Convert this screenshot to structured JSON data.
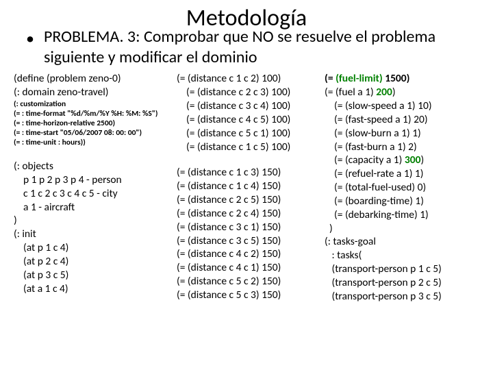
{
  "title": "Metodología",
  "bullet_char": "•",
  "subtitle": "PROBLEMA. 3: Comprobar que NO se resuelve el problema siguiente y modificar el dominio",
  "colors": {
    "text": "#000000",
    "accent": "#008000",
    "bg": "#ffffff"
  },
  "col1": {
    "block1": [
      "(define (problem zeno-0)",
      "(: domain zeno-travel)"
    ],
    "block_small": [
      "(: customization",
      "(= : time-format \"%d/%m/%Y %H: %M: %S\")",
      "(= : time-horizon-relative 2500)",
      "(= : time-start \"05/06/2007 08: 00: 00\")",
      "(= : time-unit : hours))"
    ],
    "block2": [
      "(: objects",
      "    p 1 p 2 p 3 p 4 - person",
      "    c 1 c 2 c 3 c 4 c 5 - city",
      "    a 1 - aircraft",
      ")",
      "(: init",
      "    (at p 1 c 4)",
      "    (at p 2 c 4)",
      "    (at p 3 c 5)",
      "    (at a 1 c 4)"
    ]
  },
  "col2": {
    "block1": [
      "(= (distance c 1 c 2) 100)",
      "    (= (distance c 2 c 3) 100)",
      "    (= (distance c 3 c 4) 100)",
      "    (= (distance c 4 c 5) 100)",
      "    (= (distance c 5 c 1) 100)",
      "    (= (distance c 1 c 5) 100)"
    ],
    "block2": [
      "(= (distance c 1 c 3) 150)",
      "(= (distance c 1 c 4) 150)",
      "(= (distance c 2 c 5) 150)",
      "(= (distance c 2 c 4) 150)",
      "(= (distance c 3 c 1) 150)",
      "(= (distance c 3 c 5) 150)",
      "(= (distance c 4 c 2) 150)",
      "(= (distance c 4 c 1) 150)",
      "(= (distance c 5 c 2) 150)",
      "(= (distance c 5 c 3) 150)"
    ]
  },
  "col3": {
    "lines": [
      {
        "pre": "(= ",
        "mid": "(fuel-limit)",
        "post": " 1500)",
        "bold": true,
        "green": true
      },
      {
        "pre": "(= (fuel a 1) ",
        "mid": "200",
        "post": ")",
        "bold": false,
        "green": true
      },
      {
        "pre": "    (= (slow-speed a 1) 10)",
        "mid": "",
        "post": "",
        "bold": false,
        "green": false
      },
      {
        "pre": "    (= (fast-speed a 1) 20)",
        "mid": "",
        "post": "",
        "bold": false,
        "green": false
      },
      {
        "pre": "    (= (slow-burn a 1) 1)",
        "mid": "",
        "post": "",
        "bold": false,
        "green": false
      },
      {
        "pre": "    (= (fast-burn a 1) 2)",
        "mid": "",
        "post": "",
        "bold": false,
        "green": false
      },
      {
        "pre": "    (= (capacity a 1) ",
        "mid": "300",
        "post": ")",
        "bold": false,
        "green": true
      },
      {
        "pre": "    (= (refuel-rate a 1) 1)",
        "mid": "",
        "post": "",
        "bold": false,
        "green": false
      },
      {
        "pre": "    (= (total-fuel-used) 0)",
        "mid": "",
        "post": "",
        "bold": false,
        "green": false
      },
      {
        "pre": "    (= (boarding-time) 1)",
        "mid": "",
        "post": "",
        "bold": false,
        "green": false
      },
      {
        "pre": "    (= (debarking-time) 1)",
        "mid": "",
        "post": "",
        "bold": false,
        "green": false
      },
      {
        "pre": "  )",
        "mid": "",
        "post": "",
        "bold": false,
        "green": false
      },
      {
        "pre": "(: tasks-goal",
        "mid": "",
        "post": "",
        "bold": false,
        "green": false
      },
      {
        "pre": "   : tasks(",
        "mid": "",
        "post": "",
        "bold": false,
        "green": false
      },
      {
        "pre": "   (transport-person p 1 c 5)",
        "mid": "",
        "post": "",
        "bold": false,
        "green": false
      },
      {
        "pre": "   (transport-person p 2 c 5)",
        "mid": "",
        "post": "",
        "bold": false,
        "green": false
      },
      {
        "pre": "   (transport-person p 3 c 5)",
        "mid": "",
        "post": "",
        "bold": false,
        "green": false
      }
    ]
  }
}
